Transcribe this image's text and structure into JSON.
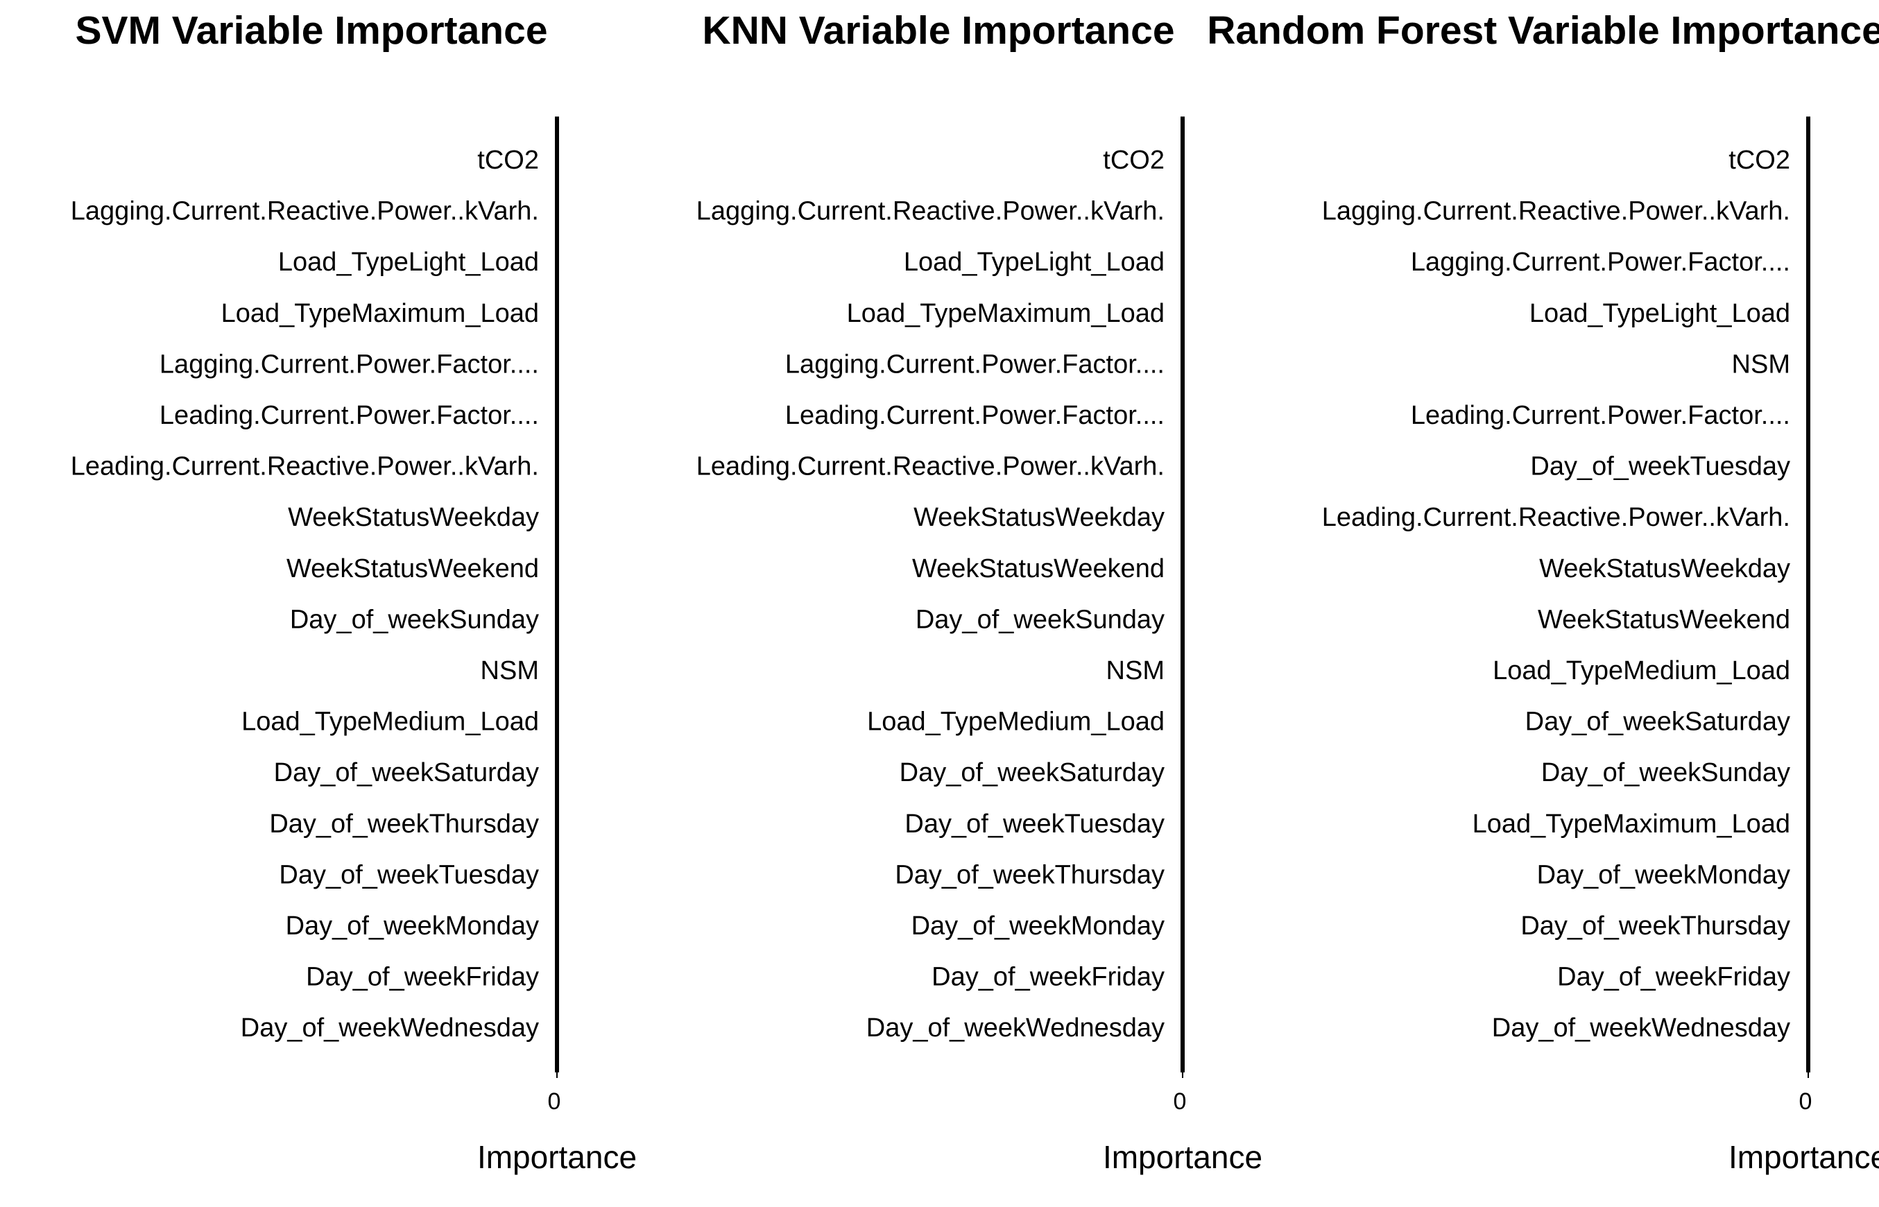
{
  "chart_data": [
    {
      "type": "bar",
      "orientation": "horizontal",
      "title": "SVM Variable Importance",
      "xlabel": "Importance",
      "color": "#1f3b6e",
      "categories": [
        "tCO2",
        "Lagging.Current.Reactive.Power..kVarh.",
        "Load_TypeLight_Load",
        "Load_TypeMaximum_Load",
        "Lagging.Current.Power.Factor....",
        "Leading.Current.Power.Factor....",
        "Leading.Current.Reactive.Power..kVarh.",
        "WeekStatusWeekday",
        "WeekStatusWeekend",
        "Day_of_weekSunday",
        "NSM",
        "Load_TypeMedium_Load",
        "Day_of_weekSaturday",
        "Day_of_weekThursday",
        "Day_of_weekTuesday",
        "Day_of_weekMonday",
        "Day_of_weekFriday",
        "Day_of_weekWednesday"
      ],
      "values": [
        0,
        0,
        0,
        0,
        0,
        0,
        0,
        0,
        0,
        0,
        0,
        0,
        0,
        0,
        0,
        0,
        0,
        0
      ],
      "xlim": [
        0,
        1
      ],
      "xticks": [
        0
      ]
    },
    {
      "type": "bar",
      "orientation": "horizontal",
      "title": "KNN Variable Importance",
      "xlabel": "Importance",
      "color": "#1f3b6e",
      "categories": [
        "tCO2",
        "Lagging.Current.Reactive.Power..kVarh.",
        "Load_TypeLight_Load",
        "Load_TypeMaximum_Load",
        "Lagging.Current.Power.Factor....",
        "Leading.Current.Power.Factor....",
        "Leading.Current.Reactive.Power..kVarh.",
        "WeekStatusWeekday",
        "WeekStatusWeekend",
        "Day_of_weekSunday",
        "NSM",
        "Load_TypeMedium_Load",
        "Day_of_weekSaturday",
        "Day_of_weekTuesday",
        "Day_of_weekThursday",
        "Day_of_weekMonday",
        "Day_of_weekFriday",
        "Day_of_weekWednesday"
      ],
      "values": [
        0,
        0,
        0,
        0,
        0,
        0,
        0,
        0,
        0,
        0,
        0,
        0,
        0,
        0,
        0,
        0,
        0,
        0
      ],
      "xlim": [
        0,
        1
      ],
      "xticks": [
        0
      ]
    },
    {
      "type": "bar",
      "orientation": "horizontal",
      "title": "Random Forest Variable Importance",
      "xlabel": "Importance",
      "color": "#1f3b6e",
      "categories": [
        "tCO2",
        "Lagging.Current.Reactive.Power..kVarh.",
        "Lagging.Current.Power.Factor....",
        "Load_TypeLight_Load",
        "NSM",
        "Leading.Current.Power.Factor....",
        "Day_of_weekTuesday",
        "Leading.Current.Reactive.Power..kVarh.",
        "WeekStatusWeekday",
        "WeekStatusWeekend",
        "Load_TypeMedium_Load",
        "Day_of_weekSaturday",
        "Day_of_weekSunday",
        "Load_TypeMaximum_Load",
        "Day_of_weekMonday",
        "Day_of_weekThursday",
        "Day_of_weekFriday",
        "Day_of_weekWednesday"
      ],
      "values": [
        0,
        0,
        0,
        0,
        0,
        0,
        0,
        0,
        0,
        0,
        0,
        0,
        0,
        0,
        0,
        0,
        0,
        0
      ],
      "xlim": [
        0,
        1
      ],
      "xticks": [
        0
      ]
    }
  ]
}
